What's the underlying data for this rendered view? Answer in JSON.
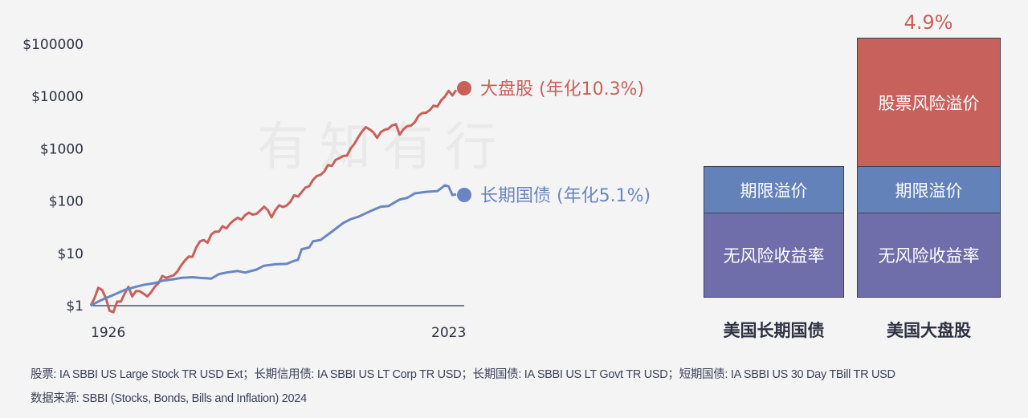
{
  "watermark": "有知有行",
  "chart_data": [
    {
      "type": "line",
      "yscale": "log",
      "ylim": [
        1,
        100000
      ],
      "yticks": [
        1,
        10,
        100,
        1000,
        10000,
        100000
      ],
      "ytick_labels": [
        "$1",
        "$10",
        "$100",
        "$1000",
        "$10000",
        "$100000"
      ],
      "xlim": [
        1926,
        2023
      ],
      "xtick_labels": [
        "1926",
        "2023"
      ],
      "series": [
        {
          "name": "大盘股 (年化10.3%)",
          "color": "#c9605a",
          "x": [
            1926,
            1927,
            1928,
            1929,
            1930,
            1931,
            1932,
            1933,
            1934,
            1935,
            1936,
            1937,
            1938,
            1939,
            1940,
            1941,
            1942,
            1943,
            1944,
            1945,
            1946,
            1947,
            1948,
            1949,
            1950,
            1951,
            1952,
            1953,
            1954,
            1955,
            1956,
            1957,
            1958,
            1959,
            1960,
            1961,
            1962,
            1963,
            1964,
            1965,
            1966,
            1967,
            1968,
            1969,
            1970,
            1971,
            1972,
            1973,
            1974,
            1975,
            1976,
            1977,
            1978,
            1979,
            1980,
            1981,
            1982,
            1983,
            1984,
            1985,
            1986,
            1987,
            1988,
            1989,
            1990,
            1991,
            1992,
            1993,
            1994,
            1995,
            1996,
            1997,
            1998,
            1999,
            2000,
            2001,
            2002,
            2003,
            2004,
            2005,
            2006,
            2007,
            2008,
            2009,
            2010,
            2011,
            2012,
            2013,
            2014,
            2015,
            2016,
            2017,
            2018,
            2019,
            2020,
            2021,
            2022,
            2023
          ],
          "y": [
            1,
            1.4,
            2.2,
            2.0,
            1.4,
            0.8,
            0.75,
            1.2,
            1.2,
            1.7,
            2.3,
            1.5,
            1.9,
            1.9,
            1.7,
            1.5,
            1.8,
            2.3,
            2.7,
            3.7,
            3.4,
            3.6,
            3.8,
            4.5,
            5.9,
            7.3,
            8.7,
            8.6,
            13,
            17,
            18,
            16,
            23,
            26,
            26,
            33,
            30,
            37,
            43,
            48,
            44,
            54,
            60,
            55,
            57,
            66,
            78,
            67,
            49,
            67,
            83,
            77,
            82,
            97,
            129,
            122,
            148,
            182,
            193,
            254,
            301,
            317,
            370,
            487,
            471,
            614,
            661,
            727,
            737,
            1013,
            1246,
            1662,
            2137,
            2587,
            2351,
            2072,
            1614,
            2077,
            2303,
            2416,
            2798,
            2951,
            1859,
            2351,
            2705,
            2762,
            3204,
            4242,
            4822,
            4889,
            5474,
            6669,
            6377,
            8385,
            9928,
            12778,
            10464,
            13214
          ]
        },
        {
          "name": "长期国债 (年化5.1%)",
          "color": "#6a86c2",
          "x": [
            1926,
            1928,
            1930,
            1932,
            1935,
            1938,
            1940,
            1943,
            1945,
            1948,
            1950,
            1953,
            1955,
            1958,
            1960,
            1962,
            1965,
            1967,
            1970,
            1972,
            1975,
            1978,
            1980,
            1981,
            1982,
            1984,
            1985,
            1987,
            1990,
            1993,
            1995,
            1997,
            2000,
            2003,
            2005,
            2008,
            2010,
            2012,
            2015,
            2018,
            2019,
            2020,
            2021,
            2022,
            2023
          ],
          "y": [
            1,
            1.2,
            1.4,
            1.6,
            2.0,
            2.3,
            2.5,
            2.7,
            3.0,
            3.2,
            3.4,
            3.5,
            3.4,
            3.3,
            4.0,
            4.3,
            4.6,
            4.3,
            4.9,
            5.8,
            6.2,
            6.3,
            7.2,
            7.5,
            12,
            13,
            17,
            18,
            26,
            38,
            45,
            50,
            63,
            78,
            80,
            107,
            115,
            140,
            150,
            155,
            175,
            200,
            190,
            130,
            135
          ]
        }
      ]
    },
    {
      "type": "bar",
      "stacked": true,
      "categories": [
        "美国长期国债",
        "美国大盘股"
      ],
      "segments": [
        "无风险收益率",
        "期限溢价",
        "股票风险溢价"
      ],
      "colors": {
        "无风险收益率": "#6f6eaa",
        "期限溢价": "#6382b9",
        "股票风险溢价": "#c6615c"
      },
      "annotation": "4.9%"
    }
  ],
  "labels": {
    "risk_free": "无风险收益率",
    "term_premium": "期限溢价",
    "equity_premium": "股票风险溢价",
    "bond_cat": "美国长期国债",
    "stock_cat": "美国大盘股",
    "premium_value": "4.9%"
  },
  "notes": {
    "line1": "股票: IA SBBI US Large Stock TR USD Ext；长期信用债: IA SBBI US LT Corp TR USD；长期国债:  IA SBBI US LT Govt TR USD；短期国债: IA SBBI US 30 Day TBill TR USD",
    "line2": "数据来源: SBBI (Stocks, Bonds, Bills and Inflation) 2024"
  }
}
